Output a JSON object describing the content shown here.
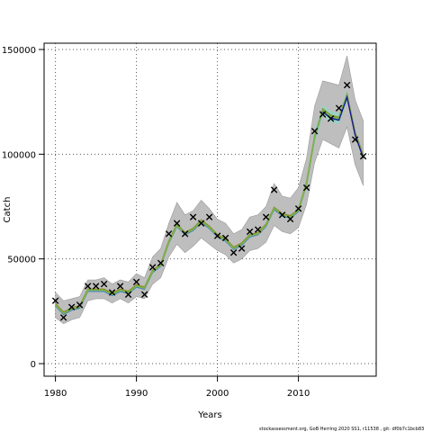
{
  "chart_data": {
    "type": "line",
    "xlabel": "Years",
    "ylabel": "Catch",
    "xlim": [
      1978.6,
      2019.6
    ],
    "ylim": [
      -6000,
      153000
    ],
    "x_ticks": [
      1980,
      1990,
      2000,
      2010
    ],
    "x_tick_labels": [
      "1980",
      "1990",
      "2000",
      "2010"
    ],
    "y_ticks": [
      0,
      50000,
      100000,
      150000
    ],
    "y_tick_labels": [
      "0",
      "50000",
      "100000",
      "150000"
    ],
    "grid": "dotted",
    "colors": {
      "band": "#bebebe",
      "band_outline": "#999999",
      "ci_light": "#8fd6c4",
      "estimate_dark": "#1a1a8c",
      "line_blue": "#3c7fd0",
      "line_green": "#7ab648",
      "line_olive": "#8a8a2a",
      "marker": "#000000"
    },
    "series": [
      {
        "x": [
          1980,
          1981,
          1982,
          1983,
          1984,
          1985,
          1986,
          1987,
          1988,
          1989,
          1990,
          1991,
          1992,
          1993,
          1994,
          1995,
          1996,
          1997,
          1998,
          1999,
          2000,
          2001,
          2002,
          2003,
          2004,
          2005,
          2006,
          2007,
          2008,
          2009,
          2010,
          2011,
          2012,
          2013,
          2014,
          2015,
          2016,
          2017,
          2018
        ],
        "values": [
          28000,
          24000,
          26000,
          27000,
          35000,
          35000,
          35000,
          33000,
          35000,
          34000,
          37000,
          36000,
          44000,
          47000,
          58000,
          66000,
          62000,
          64000,
          68000,
          65000,
          61000,
          59000,
          55000,
          57000,
          61000,
          62000,
          66000,
          74000,
          71000,
          70000,
          73000,
          86000,
          108000,
          121000,
          118000,
          117000,
          128000,
          110000,
          99000
        ],
        "lower": [
          22000,
          19000,
          21000,
          22000,
          30000,
          31000,
          31000,
          29000,
          31000,
          29000,
          32000,
          31000,
          38000,
          41000,
          51000,
          57000,
          53000,
          56000,
          60000,
          57000,
          54000,
          52000,
          48000,
          50000,
          54000,
          55000,
          58000,
          66000,
          63000,
          62000,
          65000,
          76000,
          96000,
          107000,
          105000,
          103000,
          113000,
          95000,
          85000
        ],
        "upper": [
          34000,
          30000,
          31000,
          32000,
          40000,
          40000,
          41000,
          38000,
          40000,
          39000,
          43000,
          41000,
          51000,
          55000,
          67000,
          77000,
          71000,
          73000,
          78000,
          74000,
          69000,
          67000,
          62000,
          64000,
          70000,
          71000,
          75000,
          86000,
          80000,
          79000,
          84000,
          98000,
          123000,
          135000,
          134000,
          133000,
          147000,
          126000,
          116000
        ]
      },
      {
        "x": [
          1980,
          1981,
          1982,
          1983,
          1984,
          1985,
          1986,
          1987,
          1988,
          1989,
          1990,
          1991,
          1992,
          1993,
          1994,
          1995,
          1996,
          1997,
          1998,
          1999,
          2000,
          2001,
          2002,
          2003,
          2004,
          2005,
          2006,
          2007,
          2008,
          2009,
          2010,
          2011,
          2012,
          2013,
          2014,
          2015,
          2016,
          2017,
          2018
        ],
        "values": [
          30000,
          22000,
          27000,
          28000,
          37000,
          37000,
          38000,
          34000,
          37000,
          33000,
          39000,
          33000,
          46000,
          48000,
          62000,
          67000,
          62000,
          70000,
          67000,
          70000,
          61000,
          60000,
          53000,
          55000,
          63000,
          64000,
          70000,
          83000,
          71000,
          69000,
          74000,
          84000,
          111000,
          119000,
          117000,
          122000,
          133000,
          107000,
          99000
        ]
      }
    ]
  },
  "footer_text": "stockassessment.org, GoB Herring 2020 SS1, r11538 , git: df0b7c1bcb83"
}
